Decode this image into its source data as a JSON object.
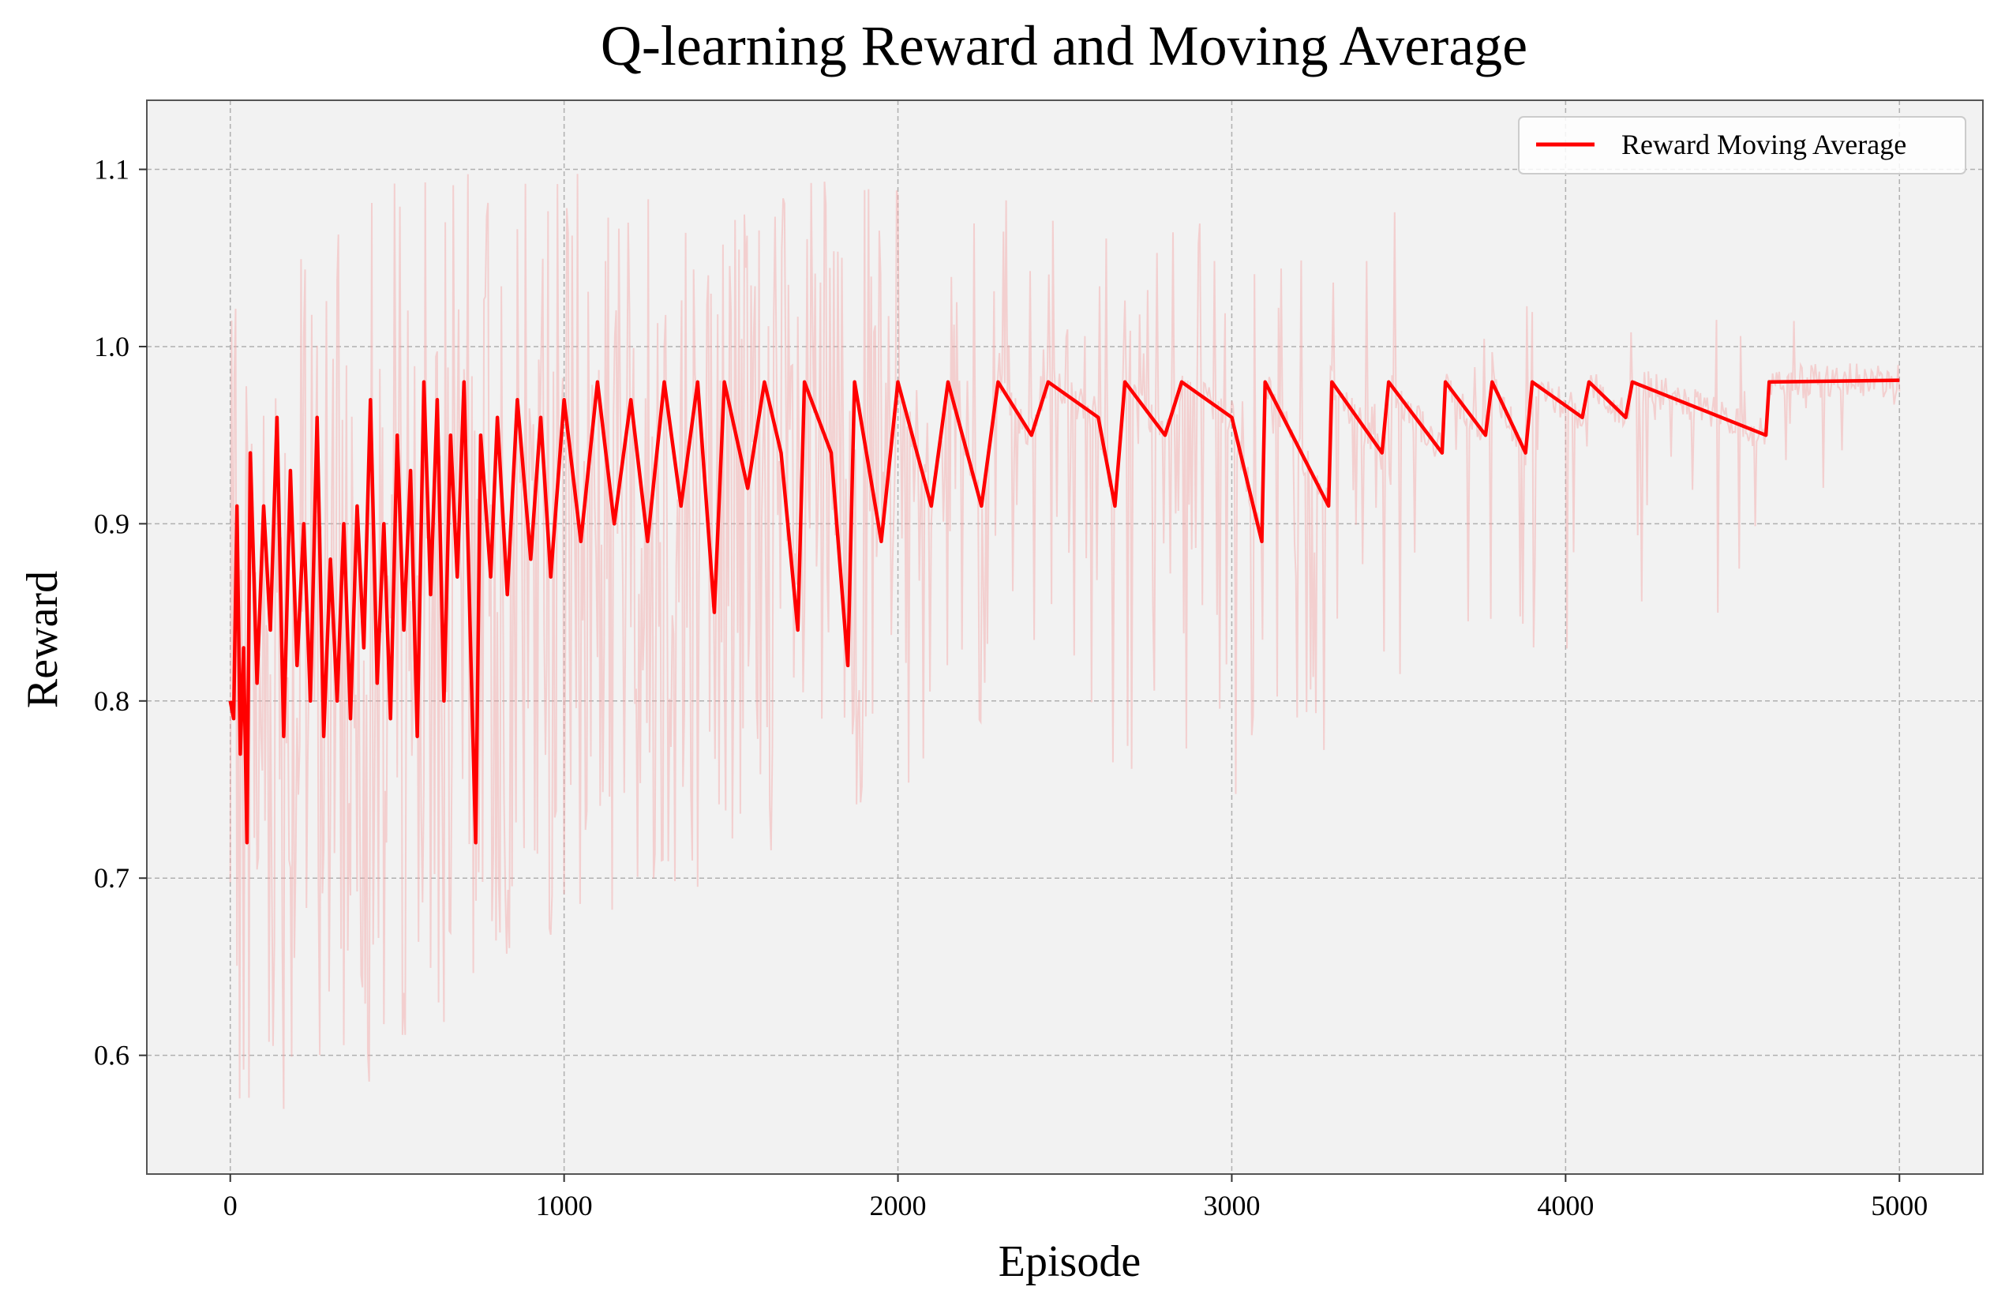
{
  "chart_data": {
    "type": "line",
    "title": "Q-learning Reward and Moving Average",
    "xlabel": "Episode",
    "ylabel": "Reward",
    "xlim": [
      -250,
      5250
    ],
    "ylim": [
      0.533,
      1.139
    ],
    "xticks": [
      0,
      1000,
      2000,
      3000,
      4000,
      5000
    ],
    "yticks": [
      0.6,
      0.7,
      0.8,
      0.9,
      1.0,
      1.1
    ],
    "xtick_labels": [
      "0",
      "1000",
      "2000",
      "3000",
      "4000",
      "5000"
    ],
    "ytick_labels": [
      "0.6",
      "0.7",
      "0.8",
      "0.9",
      "1.0",
      "1.1"
    ],
    "grid": true,
    "legend_position": "top-right",
    "episodes": 5000,
    "colors": {
      "background": "#f2f2f2",
      "moving_average": "#ff0000",
      "raw_reward": "#f4a3a3",
      "grid": "#b0b0b0"
    },
    "series": [
      {
        "name": "Reward Moving Average",
        "color": "#ff0000",
        "plateau": 0.981,
        "points": [
          [
            0,
            0.8
          ],
          [
            10,
            0.79
          ],
          [
            20,
            0.91
          ],
          [
            30,
            0.77
          ],
          [
            40,
            0.83
          ],
          [
            50,
            0.72
          ],
          [
            60,
            0.94
          ],
          [
            80,
            0.81
          ],
          [
            100,
            0.91
          ],
          [
            120,
            0.84
          ],
          [
            140,
            0.96
          ],
          [
            160,
            0.78
          ],
          [
            180,
            0.93
          ],
          [
            200,
            0.82
          ],
          [
            220,
            0.9
          ],
          [
            240,
            0.8
          ],
          [
            260,
            0.96
          ],
          [
            280,
            0.78
          ],
          [
            300,
            0.88
          ],
          [
            320,
            0.8
          ],
          [
            340,
            0.9
          ],
          [
            360,
            0.79
          ],
          [
            380,
            0.91
          ],
          [
            400,
            0.83
          ],
          [
            420,
            0.97
          ],
          [
            440,
            0.81
          ],
          [
            460,
            0.9
          ],
          [
            480,
            0.79
          ],
          [
            500,
            0.95
          ],
          [
            520,
            0.84
          ],
          [
            540,
            0.93
          ],
          [
            560,
            0.78
          ],
          [
            580,
            0.98
          ],
          [
            600,
            0.86
          ],
          [
            620,
            0.97
          ],
          [
            640,
            0.8
          ],
          [
            660,
            0.95
          ],
          [
            680,
            0.87
          ],
          [
            700,
            0.98
          ],
          [
            720,
            0.83
          ],
          [
            735,
            0.72
          ],
          [
            750,
            0.95
          ],
          [
            780,
            0.87
          ],
          [
            800,
            0.96
          ],
          [
            830,
            0.86
          ],
          [
            860,
            0.97
          ],
          [
            900,
            0.88
          ],
          [
            930,
            0.96
          ],
          [
            960,
            0.87
          ],
          [
            1000,
            0.97
          ],
          [
            1050,
            0.89
          ],
          [
            1100,
            0.98
          ],
          [
            1150,
            0.9
          ],
          [
            1200,
            0.97
          ],
          [
            1250,
            0.89
          ],
          [
            1300,
            0.98
          ],
          [
            1350,
            0.91
          ],
          [
            1400,
            0.98
          ],
          [
            1450,
            0.85
          ],
          [
            1480,
            0.98
          ],
          [
            1550,
            0.92
          ],
          [
            1600,
            0.98
          ],
          [
            1650,
            0.94
          ],
          [
            1700,
            0.84
          ],
          [
            1720,
            0.98
          ],
          [
            1800,
            0.94
          ],
          [
            1850,
            0.82
          ],
          [
            1870,
            0.98
          ],
          [
            1950,
            0.89
          ],
          [
            2000,
            0.98
          ],
          [
            2100,
            0.91
          ],
          [
            2150,
            0.98
          ],
          [
            2250,
            0.91
          ],
          [
            2300,
            0.98
          ],
          [
            2400,
            0.95
          ],
          [
            2450,
            0.98
          ],
          [
            2600,
            0.96
          ],
          [
            2650,
            0.91
          ],
          [
            2680,
            0.98
          ],
          [
            2800,
            0.95
          ],
          [
            2850,
            0.98
          ],
          [
            3000,
            0.96
          ],
          [
            3090,
            0.89
          ],
          [
            3100,
            0.98
          ],
          [
            3290,
            0.91
          ],
          [
            3300,
            0.98
          ],
          [
            3450,
            0.94
          ],
          [
            3470,
            0.98
          ],
          [
            3630,
            0.94
          ],
          [
            3640,
            0.98
          ],
          [
            3760,
            0.95
          ],
          [
            3780,
            0.98
          ],
          [
            3880,
            0.94
          ],
          [
            3900,
            0.98
          ],
          [
            4050,
            0.96
          ],
          [
            4070,
            0.98
          ],
          [
            4180,
            0.96
          ],
          [
            4200,
            0.98
          ],
          [
            4600,
            0.95
          ],
          [
            4610,
            0.98
          ],
          [
            5000,
            0.981
          ]
        ]
      }
    ],
    "raw_reward_band": {
      "color": "#f4a3a3",
      "envelope": [
        [
          0,
          0.56,
          1.02
        ],
        [
          500,
          0.59,
          1.1
        ],
        [
          1000,
          0.67,
          1.1
        ],
        [
          1500,
          0.7,
          1.1
        ],
        [
          2000,
          0.75,
          1.09
        ],
        [
          2500,
          0.76,
          1.08
        ],
        [
          3000,
          0.74,
          1.07
        ],
        [
          3500,
          0.78,
          1.08
        ],
        [
          4000,
          0.8,
          1.05
        ],
        [
          4500,
          0.84,
          1.03
        ],
        [
          5000,
          0.97,
          0.99
        ]
      ]
    }
  }
}
